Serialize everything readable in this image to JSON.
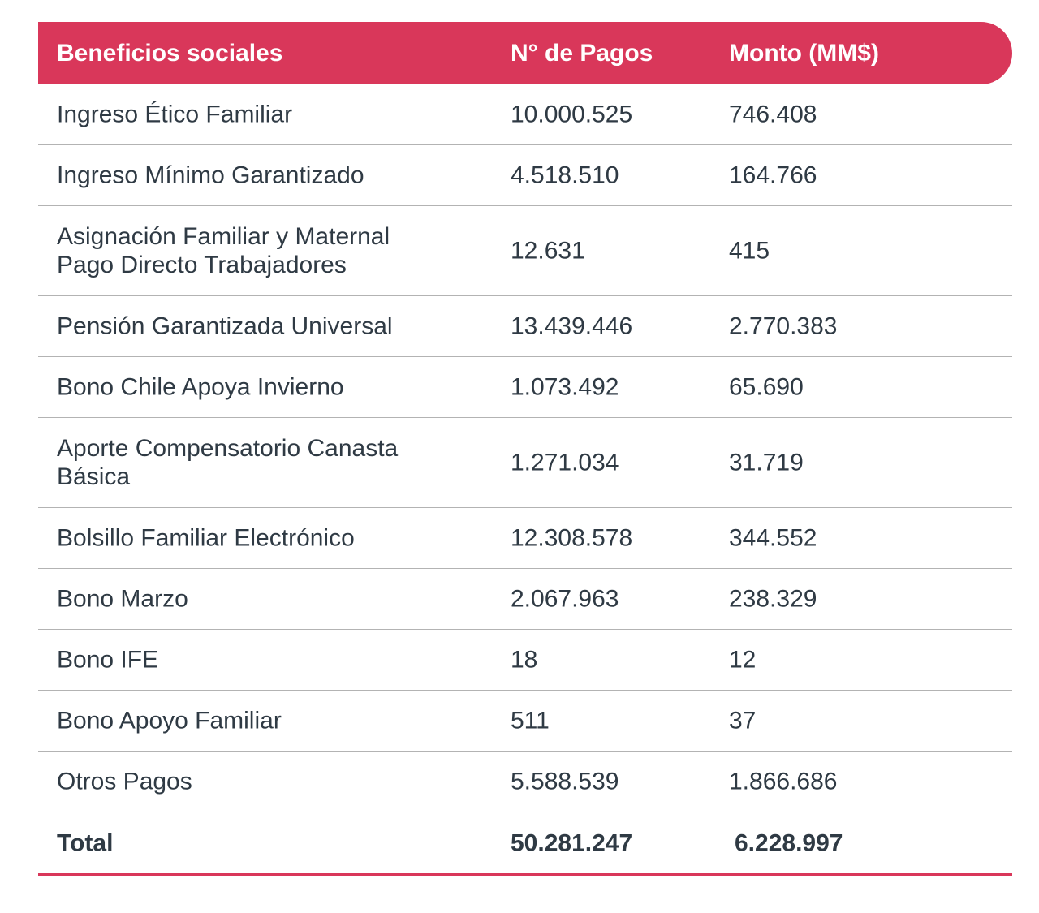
{
  "colors": {
    "accent": "#d9375a",
    "text": "#2f3a44"
  },
  "header": {
    "col1": "Beneficios sociales",
    "col2": "N° de Pagos",
    "col3": "Monto (MM$)"
  },
  "rows": [
    {
      "name": "Ingreso Ético Familiar",
      "pagos": "10.000.525",
      "monto": "746.408"
    },
    {
      "name": "Ingreso Mínimo Garantizado",
      "pagos": "4.518.510",
      "monto": "164.766"
    },
    {
      "name": "Asignación Familiar y Maternal Pago Directo Trabajadores",
      "pagos": "12.631",
      "monto": "415"
    },
    {
      "name": "Pensión Garantizada Universal",
      "pagos": "13.439.446",
      "monto": "2.770.383"
    },
    {
      "name": "Bono Chile Apoya Invierno",
      "pagos": "1.073.492",
      "monto": "65.690"
    },
    {
      "name": "Aporte Compensatorio Canasta Básica",
      "pagos": "1.271.034",
      "monto": "31.719"
    },
    {
      "name": "Bolsillo Familiar Electrónico",
      "pagos": "12.308.578",
      "monto": "344.552"
    },
    {
      "name": "Bono Marzo",
      "pagos": "2.067.963",
      "monto": "238.329"
    },
    {
      "name": "Bono IFE",
      "pagos": "18",
      "monto": "12"
    },
    {
      "name": "Bono Apoyo Familiar",
      "pagos": "511",
      "monto": "37"
    },
    {
      "name": "Otros Pagos",
      "pagos": "5.588.539",
      "monto": "1.866.686"
    }
  ],
  "total": {
    "label": "Total",
    "pagos": "50.281.247",
    "monto": "6.228.997"
  }
}
